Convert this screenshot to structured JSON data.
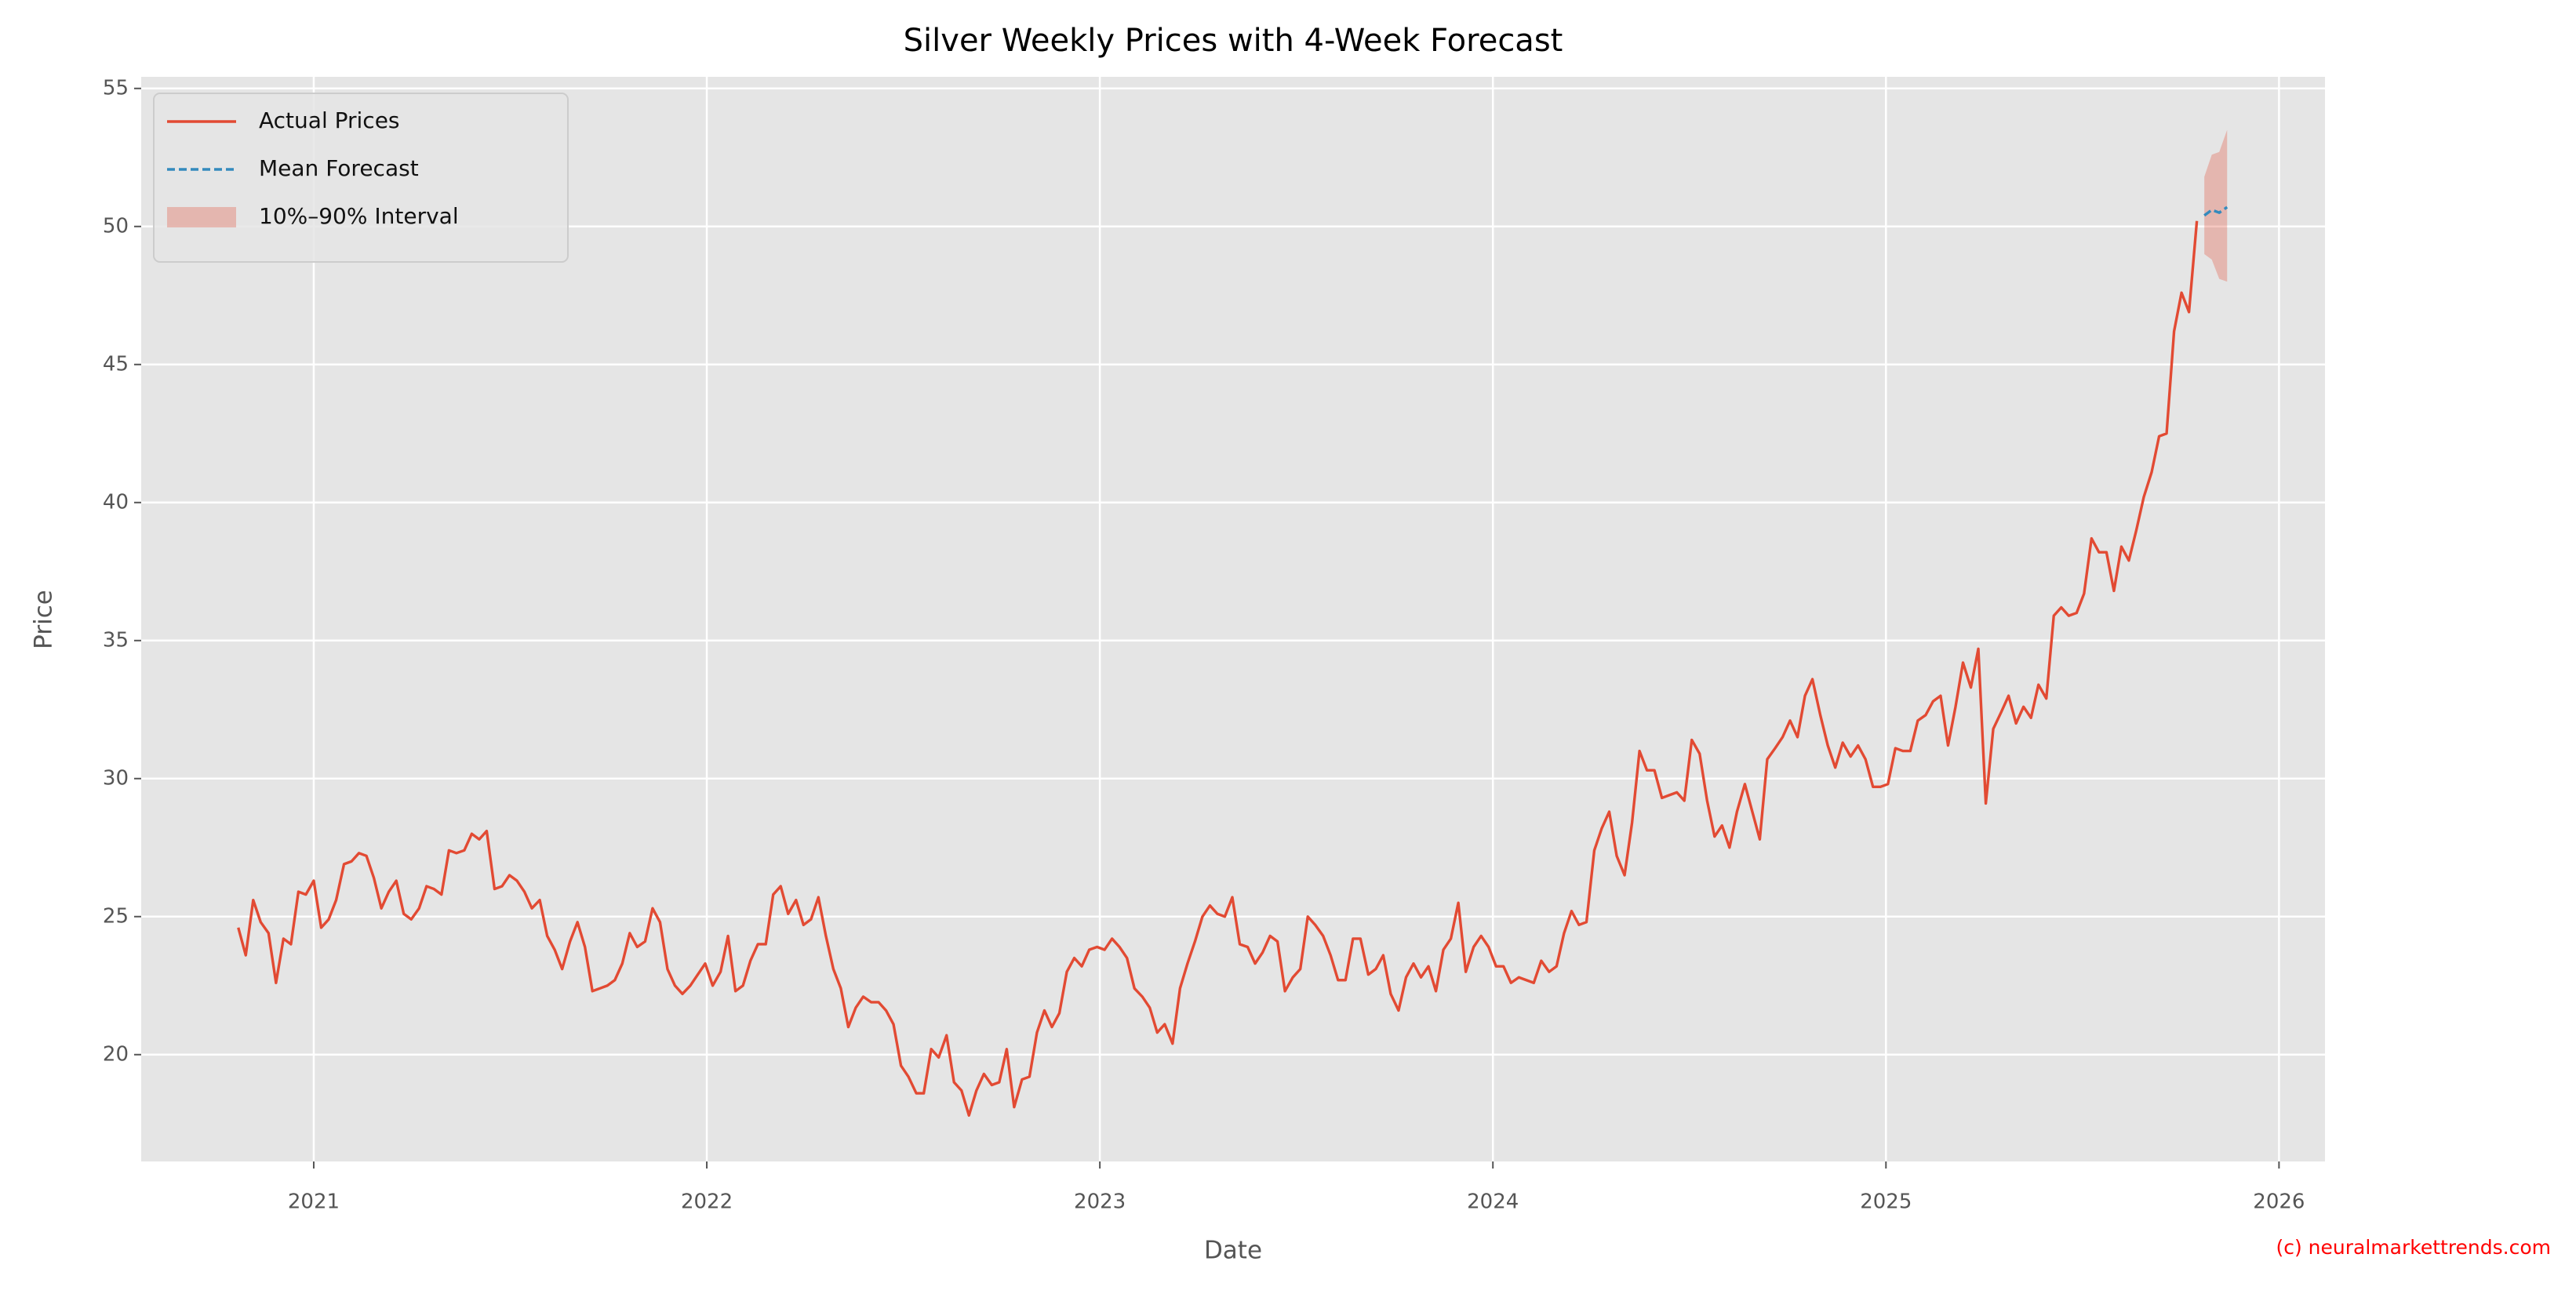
{
  "chart_data": {
    "type": "line",
    "title": "Silver Weekly Prices with 4-Week Forecast",
    "x_label": "Date",
    "y_label": "Price",
    "xlim": [
      2020.561,
      2026.117
    ],
    "ylim": [
      16.13,
      55.42
    ],
    "xticks": [
      2021,
      2022,
      2023,
      2024,
      2025,
      2026
    ],
    "yticks": [
      20,
      25,
      30,
      35,
      40,
      45,
      50,
      55
    ],
    "grid": true,
    "background": "#e5e5e5",
    "legend": "upper left",
    "annotations": [
      {
        "text": "(c) neuralmarkettrends.com",
        "color": "#ff0000"
      }
    ],
    "series": [
      {
        "name": "Actual Prices",
        "color": "#e24a33",
        "style": "solid",
        "x": [
          2020.808,
          2020.827,
          2020.846,
          2020.865,
          2020.885,
          2020.904,
          2020.923,
          2020.942,
          2020.961,
          2020.98,
          2021.0,
          2021.019,
          2021.038,
          2021.057,
          2021.077,
          2021.096,
          2021.115,
          2021.134,
          2021.153,
          2021.172,
          2021.191,
          2021.21,
          2021.229,
          2021.248,
          2021.268,
          2021.287,
          2021.306,
          2021.325,
          2021.344,
          2021.363,
          2021.383,
          2021.402,
          2021.421,
          2021.44,
          2021.46,
          2021.479,
          2021.498,
          2021.517,
          2021.536,
          2021.555,
          2021.575,
          2021.594,
          2021.613,
          2021.632,
          2021.652,
          2021.671,
          2021.69,
          2021.709,
          2021.728,
          2021.747,
          2021.766,
          2021.785,
          2021.804,
          2021.823,
          2021.843,
          2021.862,
          2021.881,
          2021.9,
          2021.919,
          2021.938,
          2021.958,
          2021.977,
          2021.996,
          2022.015,
          2022.035,
          2022.054,
          2022.073,
          2022.092,
          2022.111,
          2022.13,
          2022.15,
          2022.169,
          2022.188,
          2022.207,
          2022.227,
          2022.246,
          2022.265,
          2022.284,
          2022.303,
          2022.322,
          2022.341,
          2022.36,
          2022.379,
          2022.398,
          2022.418,
          2022.437,
          2022.456,
          2022.475,
          2022.494,
          2022.513,
          2022.533,
          2022.552,
          2022.571,
          2022.59,
          2022.61,
          2022.629,
          2022.648,
          2022.667,
          2022.686,
          2022.705,
          2022.725,
          2022.744,
          2022.763,
          2022.782,
          2022.802,
          2022.821,
          2022.84,
          2022.859,
          2022.878,
          2022.897,
          2022.916,
          2022.935,
          2022.954,
          2022.973,
          2022.993,
          2023.012,
          2023.031,
          2023.05,
          2023.069,
          2023.088,
          2023.108,
          2023.127,
          2023.146,
          2023.165,
          2023.185,
          2023.204,
          2023.223,
          2023.242,
          2023.261,
          2023.28,
          2023.299,
          2023.318,
          2023.337,
          2023.356,
          2023.376,
          2023.395,
          2023.414,
          2023.433,
          2023.452,
          2023.471,
          2023.491,
          2023.51,
          2023.529,
          2023.548,
          2023.568,
          2023.587,
          2023.606,
          2023.625,
          2023.644,
          2023.663,
          2023.683,
          2023.702,
          2023.721,
          2023.74,
          2023.76,
          2023.779,
          2023.798,
          2023.817,
          2023.836,
          2023.855,
          2023.874,
          2023.893,
          2023.912,
          2023.931,
          2023.951,
          2023.97,
          2023.989,
          2024.008,
          2024.027,
          2024.046,
          2024.066,
          2024.085,
          2024.104,
          2024.123,
          2024.143,
          2024.162,
          2024.181,
          2024.2,
          2024.219,
          2024.238,
          2024.258,
          2024.277,
          2024.296,
          2024.315,
          2024.335,
          2024.354,
          2024.373,
          2024.392,
          2024.411,
          2024.43,
          2024.449,
          2024.468,
          2024.487,
          2024.506,
          2024.526,
          2024.545,
          2024.564,
          2024.583,
          2024.602,
          2024.621,
          2024.641,
          2024.66,
          2024.679,
          2024.698,
          2024.718,
          2024.737,
          2024.756,
          2024.775,
          2024.794,
          2024.813,
          2024.833,
          2024.852,
          2024.871,
          2024.89,
          2024.91,
          2024.929,
          2024.948,
          2024.967,
          2024.986,
          2025.005,
          2025.024,
          2025.043,
          2025.062,
          2025.081,
          2025.101,
          2025.12,
          2025.139,
          2025.158,
          2025.177,
          2025.196,
          2025.216,
          2025.235,
          2025.254,
          2025.273,
          2025.293,
          2025.312,
          2025.331,
          2025.35,
          2025.369,
          2025.388,
          2025.408,
          2025.427,
          2025.446,
          2025.465,
          2025.485,
          2025.504,
          2025.523,
          2025.542,
          2025.561,
          2025.58,
          2025.599,
          2025.618,
          2025.637,
          2025.656,
          2025.676,
          2025.695,
          2025.714,
          2025.733,
          2025.752,
          2025.771,
          2025.791
        ],
        "values": [
          24.6,
          23.6,
          25.6,
          24.8,
          24.4,
          22.6,
          24.2,
          24.0,
          25.9,
          25.8,
          26.3,
          24.6,
          24.9,
          25.6,
          26.9,
          27.0,
          27.3,
          27.2,
          26.4,
          25.3,
          25.9,
          26.3,
          25.1,
          24.9,
          25.3,
          26.1,
          26.0,
          25.8,
          27.4,
          27.3,
          27.4,
          28.0,
          27.8,
          28.1,
          26.0,
          26.1,
          26.5,
          26.3,
          25.9,
          25.3,
          25.6,
          24.3,
          23.8,
          23.1,
          24.1,
          24.8,
          23.9,
          22.3,
          22.4,
          22.5,
          22.7,
          23.3,
          24.4,
          23.9,
          24.1,
          25.3,
          24.8,
          23.1,
          22.5,
          22.2,
          22.5,
          22.9,
          23.3,
          22.5,
          23.0,
          24.3,
          22.3,
          22.5,
          23.4,
          24.0,
          24.0,
          25.8,
          26.1,
          25.1,
          25.6,
          24.7,
          24.9,
          25.7,
          24.3,
          23.1,
          22.4,
          21.0,
          21.7,
          22.1,
          21.9,
          21.9,
          21.6,
          21.1,
          19.6,
          19.2,
          18.6,
          18.6,
          20.2,
          19.9,
          20.7,
          19.0,
          18.7,
          17.8,
          18.7,
          19.3,
          18.9,
          19.0,
          20.2,
          18.1,
          19.1,
          19.2,
          20.8,
          21.6,
          21.0,
          21.5,
          23.0,
          23.5,
          23.2,
          23.8,
          23.9,
          23.8,
          24.2,
          23.9,
          23.5,
          22.4,
          22.1,
          21.7,
          20.8,
          21.1,
          20.4,
          22.4,
          23.3,
          24.1,
          25.0,
          25.4,
          25.1,
          25.0,
          25.7,
          24.0,
          23.9,
          23.3,
          23.7,
          24.3,
          24.1,
          22.3,
          22.8,
          23.1,
          25.0,
          24.7,
          24.3,
          23.6,
          22.7,
          22.7,
          24.2,
          24.2,
          22.9,
          23.1,
          23.6,
          22.2,
          21.6,
          22.8,
          23.3,
          22.8,
          23.2,
          22.3,
          23.8,
          24.2,
          25.5,
          23.0,
          23.9,
          24.3,
          23.9,
          23.2,
          23.2,
          22.6,
          22.8,
          22.7,
          22.6,
          23.4,
          23.0,
          23.2,
          24.4,
          25.2,
          24.7,
          24.8,
          27.4,
          28.2,
          28.8,
          27.2,
          26.5,
          28.4,
          31.0,
          30.3,
          30.3,
          29.3,
          29.4,
          29.5,
          29.2,
          31.4,
          30.9,
          29.2,
          27.9,
          28.3,
          27.5,
          28.8,
          29.8,
          28.8,
          27.8,
          30.7,
          31.1,
          31.5,
          32.1,
          31.5,
          33.0,
          33.6,
          32.3,
          31.2,
          30.4,
          31.3,
          30.8,
          31.2,
          30.7,
          29.7,
          29.7,
          29.8,
          31.1,
          31.0,
          31.0,
          32.1,
          32.3,
          32.8,
          33.0,
          31.2,
          32.6,
          34.2,
          33.3,
          34.7,
          29.1,
          31.8,
          32.4,
          33.0,
          32.0,
          32.6,
          32.2,
          33.4,
          32.9,
          35.9,
          36.2,
          35.9,
          36.0,
          36.7,
          38.7,
          38.2,
          38.2,
          36.8,
          38.4,
          37.9,
          39.0,
          40.2,
          41.1,
          42.4,
          42.5,
          46.2,
          47.6,
          46.9,
          50.2
        ]
      },
      {
        "name": "Mean Forecast",
        "color": "#348abd",
        "style": "dashed",
        "x": [
          2025.81,
          2025.829,
          2025.848,
          2025.868
        ],
        "values": [
          50.4,
          50.6,
          50.5,
          50.7
        ]
      },
      {
        "name": "10%–90% Interval",
        "type": "band",
        "color": "#e24a33",
        "opacity": 0.3,
        "x": [
          2025.81,
          2025.829,
          2025.848,
          2025.868
        ],
        "lower": [
          49.0,
          48.8,
          48.1,
          48.0
        ],
        "upper": [
          51.8,
          52.6,
          52.7,
          53.5
        ]
      }
    ]
  }
}
